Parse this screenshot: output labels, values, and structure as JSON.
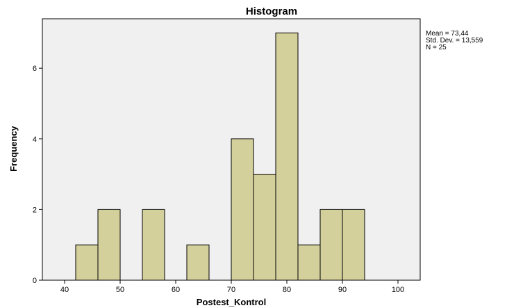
{
  "chart_data": {
    "type": "bar",
    "title": "Histogram",
    "xlabel": "Postest_Kontrol",
    "ylabel": "Frequency",
    "xlim": [
      36,
      104
    ],
    "ylim": [
      0,
      7.4
    ],
    "x_ticks": [
      40,
      50,
      60,
      70,
      80,
      90,
      100
    ],
    "y_ticks": [
      0,
      2,
      4,
      6
    ],
    "bins": [
      {
        "x0": 42,
        "x1": 46,
        "value": 1
      },
      {
        "x0": 46,
        "x1": 50,
        "value": 2
      },
      {
        "x0": 54,
        "x1": 58,
        "value": 2
      },
      {
        "x0": 62,
        "x1": 66,
        "value": 1
      },
      {
        "x0": 70,
        "x1": 74,
        "value": 4
      },
      {
        "x0": 74,
        "x1": 78,
        "value": 3
      },
      {
        "x0": 78,
        "x1": 82,
        "value": 7
      },
      {
        "x0": 82,
        "x1": 86,
        "value": 1
      },
      {
        "x0": 86,
        "x1": 90,
        "value": 2
      },
      {
        "x0": 90,
        "x1": 94,
        "value": 2
      }
    ],
    "bar_color": "#d4d09c",
    "plot_background": "#f0f0f0",
    "grid": false
  },
  "stats": {
    "mean": "Mean = 73,44",
    "std_dev": "Std. Dev. = 13,559",
    "n": "N = 25"
  }
}
